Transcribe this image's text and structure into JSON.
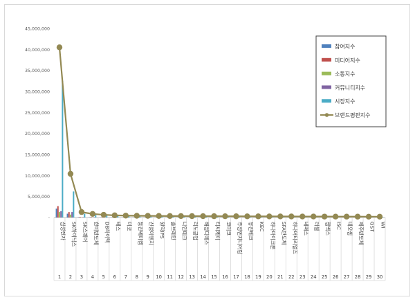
{
  "chart_data": {
    "type": "bar",
    "title": "",
    "xlabel": "",
    "ylabel": "",
    "ylim": [
      0,
      45000000
    ],
    "y_ticks": [
      0,
      5000000,
      10000000,
      15000000,
      20000000,
      25000000,
      30000000,
      35000000,
      40000000,
      45000000
    ],
    "y_tick_labels": [
      "-",
      "5,000,000",
      "10,000,000",
      "15,000,000",
      "20,000,000",
      "25,000,000",
      "30,000,000",
      "35,000,000",
      "40,000,000",
      "45,000,000"
    ],
    "grid": false,
    "legend_position": "right",
    "ranks": [
      "1",
      "2",
      "3",
      "4",
      "5",
      "6",
      "7",
      "8",
      "9",
      "10",
      "11",
      "12",
      "13",
      "14",
      "15",
      "16",
      "17",
      "18",
      "19",
      "20",
      "21",
      "22",
      "23",
      "24",
      "25",
      "26",
      "27",
      "28",
      "29",
      "30"
    ],
    "categories": [
      "삼성전자",
      "SK하이닉스",
      "SK스퀘어",
      "한미반도체",
      "DB하이텍",
      "테스",
      "미코",
      "동진쎄미켐",
      "신성이엔지",
      "원익IPS",
      "솔브레인",
      "나인테크",
      "리노공업",
      "해성디에스",
      "티씨케이",
      "코미코",
      "주성엔지니어링",
      "유진테크",
      "KEC",
      "하나마이크론",
      "SFA반도체",
      "하나머티리얼즈",
      "네패스",
      "러셀",
      "젬백스",
      "ISC",
      "네오셈",
      "제주반도체",
      "GST",
      "WI"
    ],
    "series": [
      {
        "name": "참여지수",
        "color": "#4f81bd",
        "values": [
          2100000,
          900000,
          90000,
          60000,
          40000,
          35000,
          30000,
          30000,
          28000,
          26000,
          25000,
          24000,
          23000,
          22000,
          21000,
          20000,
          19000,
          18000,
          17000,
          16000,
          15000,
          14000,
          13000,
          12000,
          11000,
          10000,
          9500,
          9000,
          8500,
          8000
        ]
      },
      {
        "name": "미디어지수",
        "color": "#c0504d",
        "values": [
          2700000,
          1300000,
          150000,
          120000,
          90000,
          80000,
          60000,
          60000,
          55000,
          50000,
          48000,
          46000,
          44000,
          42000,
          40000,
          38000,
          36000,
          34000,
          32000,
          30000,
          28000,
          26000,
          24000,
          22000,
          20000,
          18000,
          16000,
          15000,
          14000,
          13000
        ]
      },
      {
        "name": "소통지수",
        "color": "#9bbb59",
        "values": [
          1300000,
          700000,
          40000,
          30000,
          20000,
          15000,
          12000,
          12000,
          11000,
          10000,
          9500,
          9000,
          8500,
          8000,
          7500,
          7000,
          6500,
          6000,
          5500,
          5000,
          4800,
          4600,
          4400,
          4200,
          4000,
          3800,
          3600,
          3400,
          3200,
          3000
        ]
      },
      {
        "name": "커뮤니티지수",
        "color": "#8064a2",
        "values": [
          1500000,
          1300000,
          90000,
          70000,
          50000,
          40000,
          30000,
          30000,
          28000,
          26000,
          24000,
          22000,
          20000,
          19000,
          18000,
          17000,
          16000,
          15000,
          14000,
          13000,
          12000,
          11000,
          10000,
          9500,
          9000,
          8500,
          8000,
          7500,
          7000,
          6500
        ]
      },
      {
        "name": "시장지수",
        "color": "#4bacc6",
        "values": [
          32500000,
          6200000,
          900000,
          550000,
          450000,
          350000,
          300000,
          280000,
          270000,
          260000,
          250000,
          240000,
          230000,
          220000,
          210000,
          200000,
          190000,
          180000,
          170000,
          160000,
          150000,
          140000,
          130000,
          120000,
          110000,
          100000,
          95000,
          90000,
          85000,
          80000
        ]
      }
    ],
    "line_series": {
      "name": "브랜드평판지수",
      "color": "#938953",
      "values": [
        40500000,
        10400000,
        1300000,
        850000,
        650000,
        520000,
        450000,
        410000,
        390000,
        370000,
        355000,
        340000,
        330000,
        320000,
        310000,
        300000,
        290000,
        280000,
        270000,
        262000,
        255000,
        248000,
        240000,
        232000,
        224000,
        216000,
        210000,
        205000,
        200000,
        195000
      ]
    }
  }
}
